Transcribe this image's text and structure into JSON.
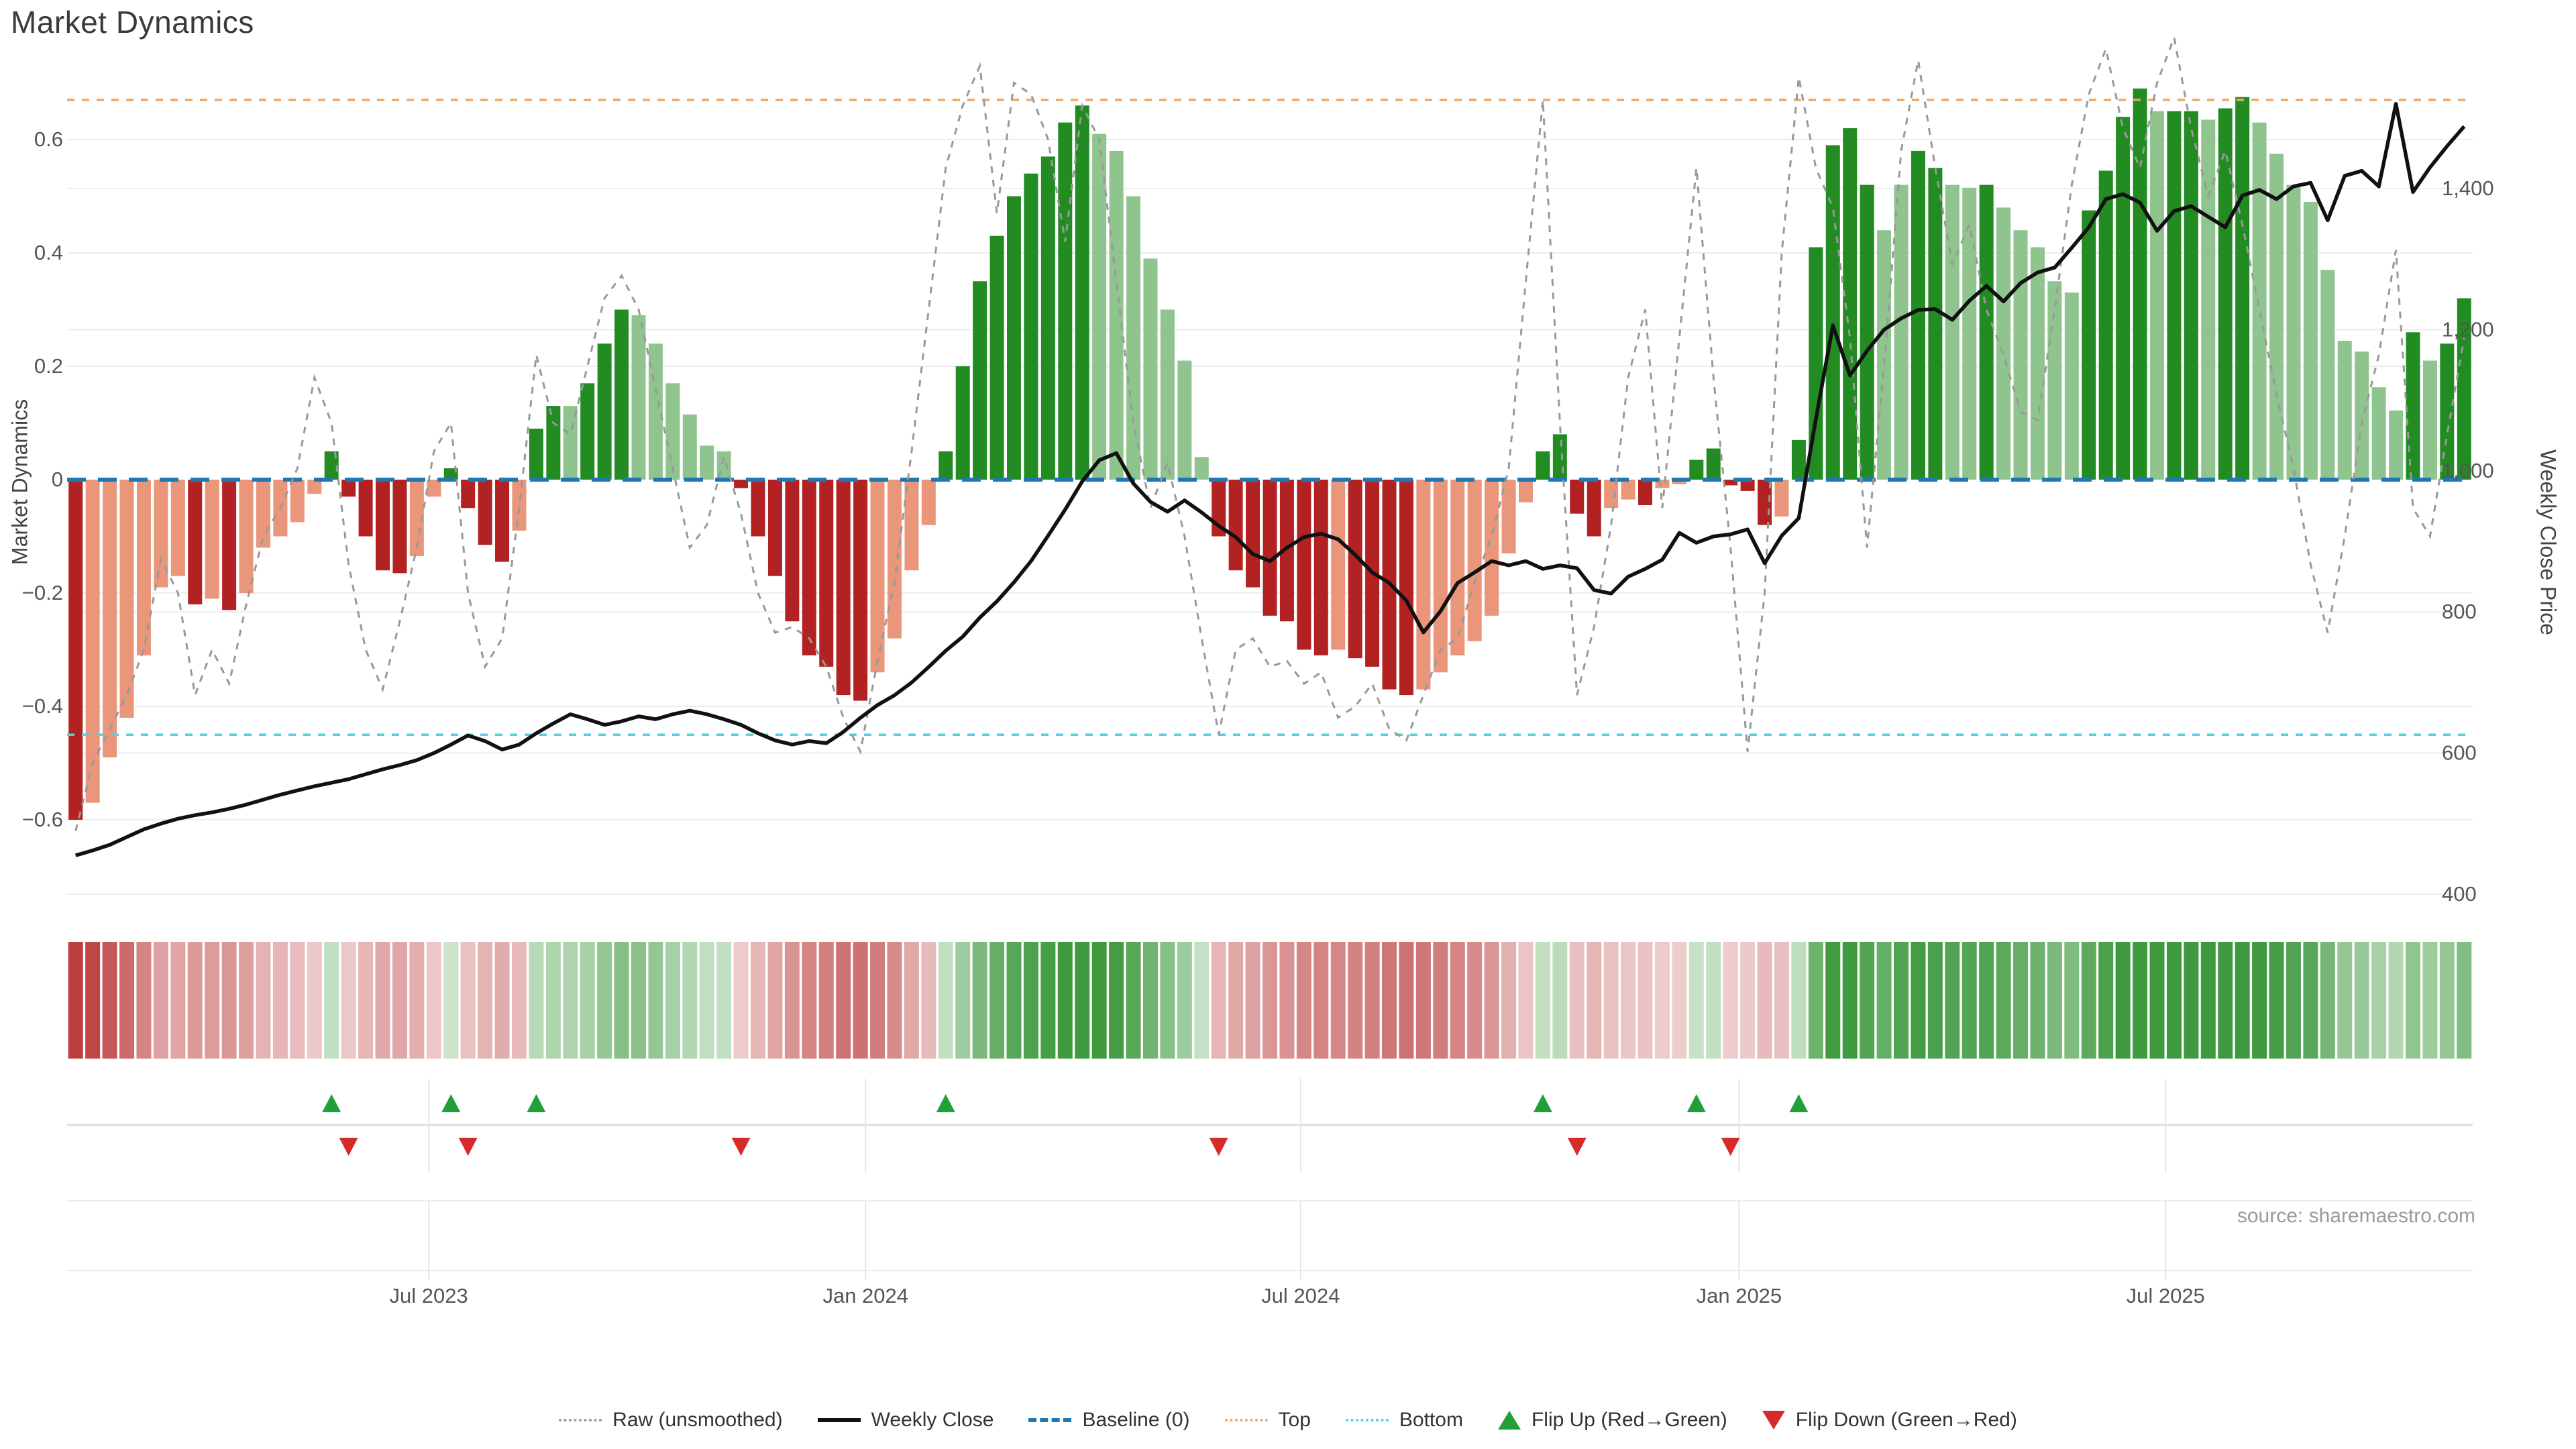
{
  "title": "Market Dynamics",
  "source_note": "source: sharemaestro.com",
  "axes": {
    "left_label": "Market Dynamics",
    "right_label": "Weekly Close Price",
    "left_ticks": [
      {
        "label": "0.6",
        "value": 0.6
      },
      {
        "label": "0.4",
        "value": 0.4
      },
      {
        "label": "0.2",
        "value": 0.2
      },
      {
        "label": "0",
        "value": 0.0
      },
      {
        "label": "−0.2",
        "value": -0.2
      },
      {
        "label": "−0.4",
        "value": -0.4
      },
      {
        "label": "−0.6",
        "value": -0.6
      }
    ],
    "right_ticks": [
      {
        "label": "1,400",
        "value": 1400
      },
      {
        "label": "1,200",
        "value": 1200
      },
      {
        "label": "1,000",
        "value": 1000
      },
      {
        "label": "800",
        "value": 800
      },
      {
        "label": "600",
        "value": 600
      },
      {
        "label": "400",
        "value": 400
      }
    ],
    "x_ticks": [
      {
        "label": "Jul 2023",
        "week": 20.7
      },
      {
        "label": "Jan 2024",
        "week": 46.3
      },
      {
        "label": "Jul 2024",
        "week": 71.8
      },
      {
        "label": "Jan 2025",
        "week": 97.5
      },
      {
        "label": "Jul 2025",
        "week": 122.5
      }
    ]
  },
  "legend": {
    "items": [
      {
        "label": "Raw (unsmoothed)",
        "swatch": "sw-dotted-gray"
      },
      {
        "label": "Weekly Close",
        "swatch": "sw-solid-black"
      },
      {
        "label": "Baseline (0)",
        "swatch": "sw-dashed-blue"
      },
      {
        "label": "Top",
        "swatch": "sw-dotted-orange"
      },
      {
        "label": "Bottom",
        "swatch": "sw-dotted-cyan"
      },
      {
        "label": "Flip Up (Red→Green)",
        "swatch": "sw-tri-up"
      },
      {
        "label": "Flip Down (Green→Red)",
        "swatch": "sw-tri-down"
      }
    ]
  },
  "colors": {
    "bar_neg_dark": "#b22222",
    "bar_neg_light": "#e9967a",
    "bar_pos_dark": "#228b22",
    "bar_pos_light": "#8fc48f",
    "baseline": "#1f77b4",
    "top_line": "#f2a45f",
    "bottom_line": "#56cfe1",
    "raw_line": "#999999",
    "close_line": "#111111",
    "flip_up": "#21a038",
    "flip_down": "#d62b2b",
    "grid": "#ededf1",
    "band_line": "#dcdcdc",
    "tick_text": "#555555"
  },
  "chart_data": {
    "type": "bar+line combo with heatmap strip and flip-marker band",
    "weeks": 141,
    "x_range_note": "weekly data, Feb 2023 through Oct 2025",
    "y_left_range": [
      -0.72,
      0.78
    ],
    "y_right_range": [
      380,
      1590
    ],
    "reference_lines": {
      "baseline": 0.0,
      "top": 0.67,
      "bottom": -0.45
    },
    "flip_up_weeks": [
      15,
      22,
      27,
      51,
      86,
      95,
      101
    ],
    "flip_down_weeks": [
      16,
      23,
      39,
      67,
      88,
      97
    ],
    "bars": {
      "values": [
        -0.6,
        -0.57,
        -0.49,
        -0.42,
        -0.31,
        -0.19,
        -0.17,
        -0.22,
        -0.21,
        -0.23,
        -0.2,
        -0.12,
        -0.1,
        -0.075,
        -0.025,
        0.05,
        -0.03,
        -0.1,
        -0.16,
        -0.165,
        -0.135,
        -0.03,
        0.02,
        -0.05,
        -0.115,
        -0.145,
        -0.09,
        0.09,
        0.13,
        0.13,
        0.17,
        0.24,
        0.3,
        0.29,
        0.24,
        0.17,
        0.115,
        0.06,
        0.05,
        -0.015,
        -0.1,
        -0.17,
        -0.25,
        -0.31,
        -0.33,
        -0.38,
        -0.39,
        -0.34,
        -0.28,
        -0.16,
        -0.08,
        0.05,
        0.2,
        0.35,
        0.43,
        0.5,
        0.54,
        0.57,
        0.63,
        0.66,
        0.61,
        0.58,
        0.5,
        0.39,
        0.3,
        0.21,
        0.04,
        -0.1,
        -0.16,
        -0.19,
        -0.24,
        -0.25,
        -0.3,
        -0.31,
        -0.3,
        -0.315,
        -0.33,
        -0.37,
        -0.38,
        -0.37,
        -0.34,
        -0.31,
        -0.285,
        -0.24,
        -0.13,
        -0.04,
        0.05,
        0.08,
        -0.06,
        -0.1,
        -0.05,
        -0.035,
        -0.045,
        -0.015,
        -0.008,
        0.035,
        0.055,
        -0.01,
        -0.02,
        -0.08,
        -0.065,
        0.07,
        0.41,
        0.59,
        0.62,
        0.52,
        0.44,
        0.52,
        0.58,
        0.55,
        0.52,
        0.515,
        0.52,
        0.48,
        0.44,
        0.41,
        0.35,
        0.33,
        0.475,
        0.545,
        0.64,
        0.69,
        0.65,
        0.65,
        0.65,
        0.635,
        0.655,
        0.675,
        0.63,
        0.575,
        0.52,
        0.49,
        0.37,
        0.245,
        0.226,
        0.163,
        0.122,
        0.26,
        0.21,
        0.24,
        0.32
      ],
      "shades": [
        "d",
        "l",
        "l",
        "l",
        "l",
        "l",
        "l",
        "d",
        "l",
        "d",
        "l",
        "l",
        "l",
        "l",
        "l",
        "d",
        "d",
        "d",
        "d",
        "d",
        "l",
        "l",
        "d",
        "d",
        "d",
        "d",
        "l",
        "d",
        "d",
        "l",
        "d",
        "d",
        "d",
        "l",
        "l",
        "l",
        "l",
        "l",
        "l",
        "d",
        "d",
        "d",
        "d",
        "d",
        "d",
        "d",
        "d",
        "l",
        "l",
        "l",
        "l",
        "d",
        "d",
        "d",
        "d",
        "d",
        "d",
        "d",
        "d",
        "d",
        "l",
        "l",
        "l",
        "l",
        "l",
        "l",
        "l",
        "d",
        "d",
        "d",
        "d",
        "d",
        "d",
        "d",
        "l",
        "d",
        "d",
        "d",
        "d",
        "l",
        "l",
        "l",
        "l",
        "l",
        "l",
        "l",
        "d",
        "d",
        "d",
        "d",
        "l",
        "l",
        "d",
        "l",
        "l",
        "d",
        "d",
        "d",
        "d",
        "d",
        "l",
        "d",
        "d",
        "d",
        "d",
        "d",
        "l",
        "l",
        "d",
        "d",
        "l",
        "l",
        "d",
        "l",
        "l",
        "l",
        "l",
        "l",
        "d",
        "d",
        "d",
        "d",
        "l",
        "d",
        "d",
        "l",
        "d",
        "d",
        "l",
        "l",
        "l",
        "l",
        "l",
        "l",
        "l",
        "l",
        "l",
        "d",
        "l",
        "d",
        "d"
      ]
    },
    "raw_values": [
      -0.62,
      -0.5,
      -0.44,
      -0.38,
      -0.3,
      -0.14,
      -0.2,
      -0.38,
      -0.3,
      -0.36,
      -0.22,
      -0.1,
      -0.05,
      0.02,
      0.18,
      0.1,
      -0.15,
      -0.3,
      -0.37,
      -0.25,
      -0.12,
      0.05,
      0.1,
      -0.2,
      -0.33,
      -0.28,
      -0.05,
      0.22,
      0.1,
      0.08,
      0.2,
      0.32,
      0.36,
      0.3,
      0.16,
      0.02,
      -0.12,
      -0.08,
      0.04,
      -0.06,
      -0.2,
      -0.27,
      -0.26,
      -0.28,
      -0.33,
      -0.42,
      -0.48,
      -0.32,
      -0.18,
      0.05,
      0.3,
      0.55,
      0.66,
      0.73,
      0.47,
      0.7,
      0.68,
      0.6,
      0.42,
      0.66,
      0.6,
      0.35,
      0.1,
      -0.05,
      0.03,
      -0.1,
      -0.28,
      -0.45,
      -0.3,
      -0.28,
      -0.33,
      -0.32,
      -0.36,
      -0.34,
      -0.42,
      -0.4,
      -0.36,
      -0.44,
      -0.46,
      -0.38,
      -0.3,
      -0.28,
      -0.18,
      -0.1,
      0.02,
      0.35,
      0.67,
      0.1,
      -0.38,
      -0.26,
      -0.08,
      0.18,
      0.3,
      -0.05,
      0.25,
      0.55,
      0.18,
      -0.12,
      -0.48,
      -0.2,
      0.4,
      0.71,
      0.55,
      0.48,
      0.25,
      -0.12,
      0.2,
      0.58,
      0.74,
      0.55,
      0.38,
      0.45,
      0.3,
      0.22,
      0.12,
      0.105,
      0.3,
      0.52,
      0.68,
      0.76,
      0.62,
      0.55,
      0.7,
      0.78,
      0.62,
      0.5,
      0.58,
      0.45,
      0.3,
      0.15,
      0.02,
      -0.15,
      -0.27,
      -0.1,
      0.1,
      0.22,
      0.405,
      -0.05,
      -0.1,
      0.08,
      0.25
    ],
    "close_values": [
      455,
      462,
      470,
      481,
      492,
      500,
      507,
      512,
      516,
      521,
      527,
      534,
      541,
      547,
      553,
      558,
      563,
      570,
      577,
      583,
      590,
      600,
      612,
      625,
      617,
      605,
      612,
      628,
      642,
      655,
      648,
      640,
      645,
      652,
      648,
      655,
      660,
      655,
      648,
      640,
      628,
      618,
      612,
      617,
      614,
      630,
      650,
      668,
      682,
      700,
      722,
      745,
      765,
      792,
      815,
      842,
      872,
      908,
      945,
      985,
      1015,
      1025,
      982,
      956,
      942,
      958,
      941,
      922,
      906,
      882,
      872,
      891,
      906,
      911,
      903,
      881,
      856,
      841,
      816,
      771,
      801,
      841,
      856,
      872,
      866,
      872,
      861,
      866,
      862,
      831,
      826,
      850,
      861,
      874,
      912,
      898,
      907,
      910,
      917,
      869,
      908,
      933,
      1073,
      1206,
      1135,
      1170,
      1200,
      1216,
      1228,
      1229,
      1214,
      1241,
      1262,
      1240,
      1266,
      1281,
      1288,
      1316,
      1345,
      1385,
      1392,
      1380,
      1340,
      1368,
      1375,
      1360,
      1345,
      1390,
      1398,
      1385,
      1403,
      1408,
      1355,
      1418,
      1425,
      1403,
      1520,
      1395,
      1430,
      1460,
      1488
    ]
  }
}
